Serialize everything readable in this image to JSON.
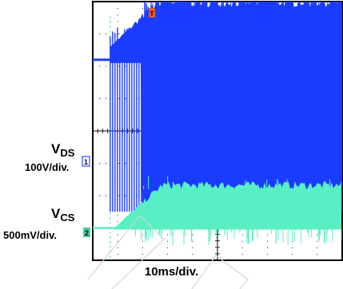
{
  "chart_data": {
    "type": "line",
    "title": "",
    "xlabel": "10ms/div.",
    "ylabel": "",
    "grid": true,
    "x_divisions": 10,
    "y_divisions": 8,
    "trigger_marker": "T",
    "series": [
      {
        "name": "VDS",
        "label_main": "V",
        "label_sub": "DS",
        "scale": "100V/div.",
        "marker": "1",
        "color": "#1a3cff",
        "baseline_div": 2.8,
        "summary": {
          "initial_level_div": 2.75,
          "burst_start_ms": 7,
          "waveform_low_div": 0.5,
          "waveform_high_div": 4.8
        }
      },
      {
        "name": "VCS",
        "label_main": "V",
        "label_sub": "CS",
        "scale": "500mV/div.",
        "marker": "2",
        "color": "#59efc4",
        "baseline_div": 0.0,
        "summary": {
          "initial_level_div": 0.0,
          "burst_start_ms": 7,
          "waveform_high_div": 1.0
        }
      }
    ]
  }
}
